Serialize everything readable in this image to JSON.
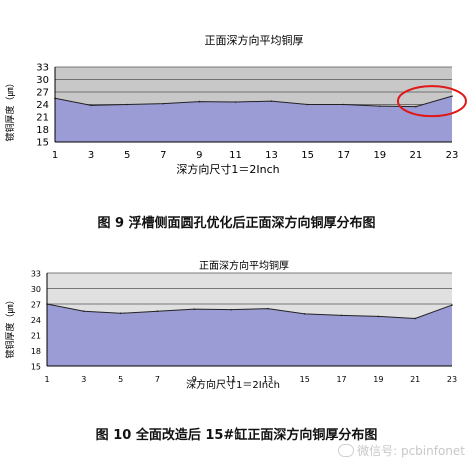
{
  "chart_data": [
    {
      "type": "area",
      "title": "正面深方向平均铜厚",
      "xlabel": "深方向尺寸1＝2Inch",
      "ylabel": "镀铜厚度（㎛）",
      "x": [
        1,
        3,
        5,
        7,
        9,
        11,
        13,
        15,
        17,
        19,
        21,
        23
      ],
      "y": [
        25.5,
        23.8,
        24.0,
        24.2,
        24.7,
        24.6,
        24.8,
        24.0,
        24.0,
        23.6,
        23.5,
        26.0
      ],
      "ylim": [
        15,
        33
      ],
      "yticks": [
        15,
        18,
        21,
        24,
        27,
        30,
        33
      ],
      "grid": true,
      "fill_color": "#9B9BD6",
      "plot_bg": "#C8C8C8",
      "annotation": "red ellipse highlighting x≈21–23",
      "caption": "图 9  浮槽侧面圆孔优化后正面深方向铜厚分布图"
    },
    {
      "type": "area",
      "title": "正面深方向平均铜厚",
      "xlabel": "深方向尺寸1＝2Inch",
      "ylabel": "镀铜厚度（㎛）",
      "x": [
        1,
        3,
        5,
        7,
        9,
        11,
        13,
        15,
        17,
        19,
        21,
        23
      ],
      "y": [
        27.0,
        25.6,
        25.2,
        25.6,
        26.0,
        25.9,
        26.1,
        25.1,
        24.8,
        24.6,
        24.2,
        26.8
      ],
      "ylim": [
        15,
        33
      ],
      "yticks": [
        15,
        18,
        21,
        24,
        27,
        30,
        33
      ],
      "grid": true,
      "fill_color": "#9B9BD6",
      "plot_bg": "#E0E0E0",
      "caption": "图 10  全面改造后 15#缸正面深方向铜厚分布图"
    }
  ],
  "watermark": "微信号: pcbinfonet"
}
